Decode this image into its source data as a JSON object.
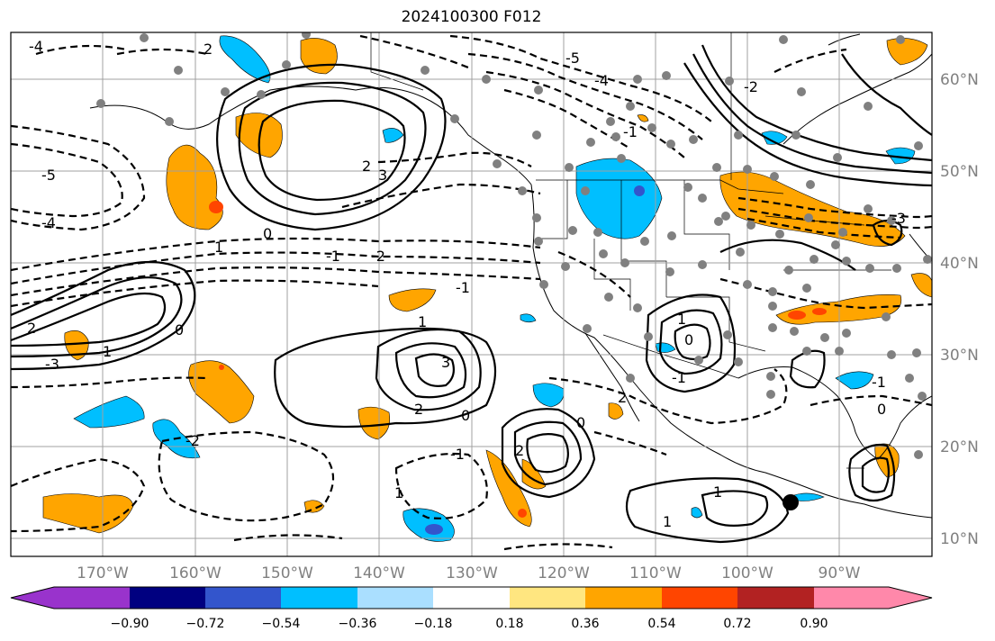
{
  "title": "2024100300 F012",
  "map": {
    "lon_labels": [
      "170°W",
      "160°W",
      "150°W",
      "140°W",
      "130°W",
      "120°W",
      "110°W",
      "100°W",
      "90°W"
    ],
    "lat_labels": [
      "60°N",
      "50°N",
      "40°N",
      "30°N",
      "20°N",
      "10°N"
    ],
    "contour_labels": [
      "-4",
      "-5",
      "-4",
      "1",
      "2",
      "0",
      "-1",
      "-2",
      "-3",
      "2",
      "3",
      "2",
      "1",
      "0",
      "-1",
      "-2",
      "1",
      "2",
      "3",
      "0",
      "-1",
      "1",
      "2",
      "0",
      "1",
      "0",
      "-1",
      "1",
      "2",
      "-1",
      "0",
      "1",
      "-1",
      "-4",
      "-3",
      "-2",
      "-5"
    ],
    "colors": {
      "grid": "#a0a0a0",
      "station_dot": "#808080",
      "marker": "#000000"
    }
  },
  "colorbar": {
    "labels": [
      "−0.90",
      "−0.72",
      "−0.54",
      "−0.36",
      "−0.18",
      "0.18",
      "0.36",
      "0.54",
      "0.72",
      "0.90"
    ],
    "colors": [
      "#9933cc",
      "#000080",
      "#3355cc",
      "#00bfff",
      "#aadfff",
      "#ffffff",
      "#ffe680",
      "#ffa500",
      "#ff4500",
      "#b22222",
      "#ff88aa"
    ]
  }
}
